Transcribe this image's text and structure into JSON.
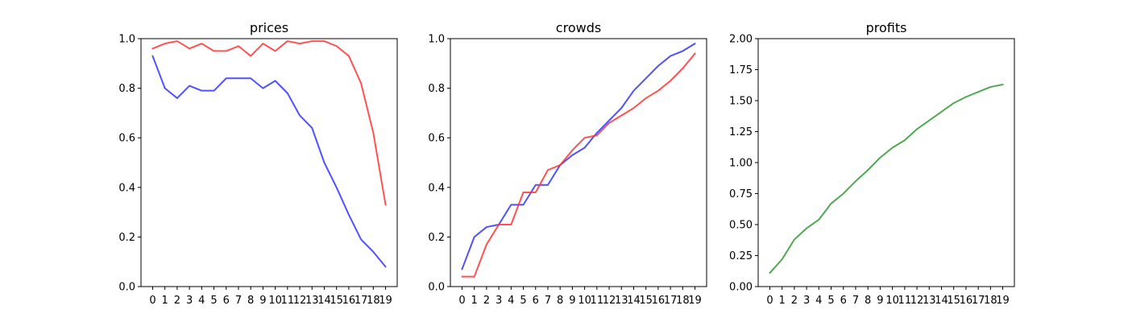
{
  "chart_data": [
    {
      "type": "line",
      "title": "prices",
      "xlabel": "",
      "ylabel": "",
      "x": [
        0,
        1,
        2,
        3,
        4,
        5,
        6,
        7,
        8,
        9,
        10,
        11,
        12,
        13,
        14,
        15,
        16,
        17,
        18,
        19
      ],
      "ylim": [
        0,
        1.0
      ],
      "yticks": [
        "0.0",
        "0.2",
        "0.4",
        "0.6",
        "0.8",
        "1.0"
      ],
      "grid": false,
      "series": [
        {
          "color": "#ff3333",
          "values": [
            0.96,
            0.98,
            0.99,
            0.96,
            0.98,
            0.95,
            0.95,
            0.97,
            0.93,
            0.98,
            0.95,
            0.99,
            0.98,
            0.99,
            0.99,
            0.97,
            0.93,
            0.82,
            0.62,
            0.33
          ]
        },
        {
          "color": "#3333ff",
          "values": [
            0.93,
            0.8,
            0.76,
            0.81,
            0.79,
            0.79,
            0.84,
            0.84,
            0.84,
            0.8,
            0.83,
            0.78,
            0.69,
            0.64,
            0.5,
            0.4,
            0.29,
            0.19,
            0.14,
            0.08
          ]
        }
      ]
    },
    {
      "type": "line",
      "title": "crowds",
      "xlabel": "",
      "ylabel": "",
      "x": [
        0,
        1,
        2,
        3,
        4,
        5,
        6,
        7,
        8,
        9,
        10,
        11,
        12,
        13,
        14,
        15,
        16,
        17,
        18,
        19
      ],
      "ylim": [
        0,
        1.0
      ],
      "yticks": [
        "0.0",
        "0.2",
        "0.4",
        "0.6",
        "0.8",
        "1.0"
      ],
      "grid": false,
      "series": [
        {
          "color": "#3333ff",
          "values": [
            0.07,
            0.2,
            0.24,
            0.25,
            0.33,
            0.33,
            0.41,
            0.41,
            0.49,
            0.53,
            0.56,
            0.62,
            0.67,
            0.72,
            0.79,
            0.84,
            0.89,
            0.93,
            0.95,
            0.98
          ]
        },
        {
          "color": "#ff3333",
          "values": [
            0.04,
            0.04,
            0.17,
            0.25,
            0.25,
            0.38,
            0.38,
            0.47,
            0.49,
            0.55,
            0.6,
            0.61,
            0.66,
            0.69,
            0.72,
            0.76,
            0.79,
            0.83,
            0.88,
            0.94
          ]
        }
      ]
    },
    {
      "type": "line",
      "title": "profits",
      "xlabel": "",
      "ylabel": "",
      "x": [
        0,
        1,
        2,
        3,
        4,
        5,
        6,
        7,
        8,
        9,
        10,
        11,
        12,
        13,
        14,
        15,
        16,
        17,
        18,
        19
      ],
      "ylim": [
        0,
        2.0
      ],
      "yticks": [
        "0.00",
        "0.25",
        "0.50",
        "0.75",
        "1.00",
        "1.25",
        "1.50",
        "1.75",
        "2.00"
      ],
      "grid": false,
      "series": [
        {
          "color": "#339933",
          "values": [
            0.11,
            0.22,
            0.38,
            0.47,
            0.54,
            0.67,
            0.75,
            0.85,
            0.94,
            1.04,
            1.12,
            1.18,
            1.27,
            1.34,
            1.41,
            1.48,
            1.53,
            1.57,
            1.61,
            1.63
          ]
        }
      ]
    }
  ]
}
